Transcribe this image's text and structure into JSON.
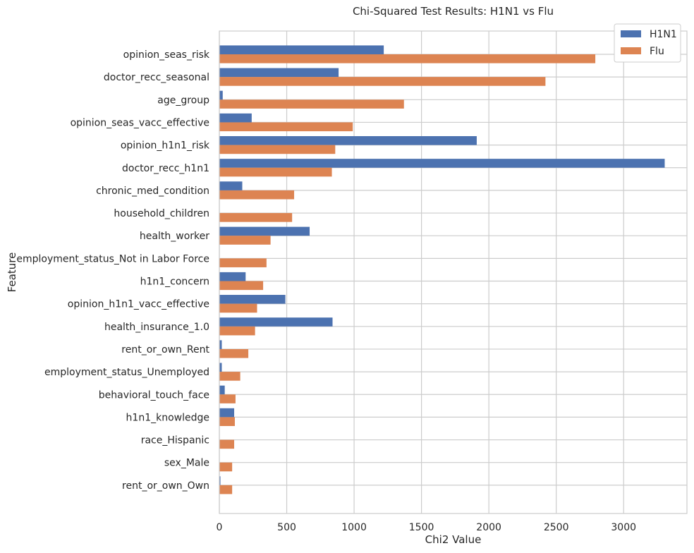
{
  "chart_data": {
    "type": "bar",
    "orientation": "horizontal",
    "title": "Chi-Squared Test Results: H1N1 vs Flu",
    "xlabel": "Chi2 Value",
    "ylabel": "Feature",
    "xlim": [
      0,
      3470
    ],
    "xticks": [
      0,
      500,
      1000,
      1500,
      2000,
      2500,
      3000
    ],
    "grid": true,
    "legend_position": "top-right",
    "categories": [
      "opinion_seas_risk",
      "doctor_recc_seasonal",
      "age_group",
      "opinion_seas_vacc_effective",
      "opinion_h1n1_risk",
      "doctor_recc_h1n1",
      "chronic_med_condition",
      "household_children",
      "health_worker",
      "employment_status_Not in Labor Force",
      "h1n1_concern",
      "opinion_h1n1_vacc_effective",
      "health_insurance_1.0",
      "rent_or_own_Rent",
      "employment_status_Unemployed",
      "behavioral_touch_face",
      "h1n1_knowledge",
      "race_Hispanic",
      "sex_Male",
      "rent_or_own_Own"
    ],
    "series": [
      {
        "name": "H1N1",
        "color": "#4c72b0",
        "values": [
          1220,
          885,
          25,
          240,
          1910,
          3305,
          170,
          2,
          670,
          2,
          195,
          490,
          840,
          18,
          18,
          40,
          110,
          2,
          2,
          8
        ]
      },
      {
        "name": "Flu",
        "color": "#dd8452",
        "values": [
          2790,
          2420,
          1370,
          990,
          860,
          835,
          555,
          540,
          380,
          350,
          325,
          280,
          265,
          215,
          155,
          120,
          115,
          110,
          95,
          95
        ]
      }
    ]
  }
}
